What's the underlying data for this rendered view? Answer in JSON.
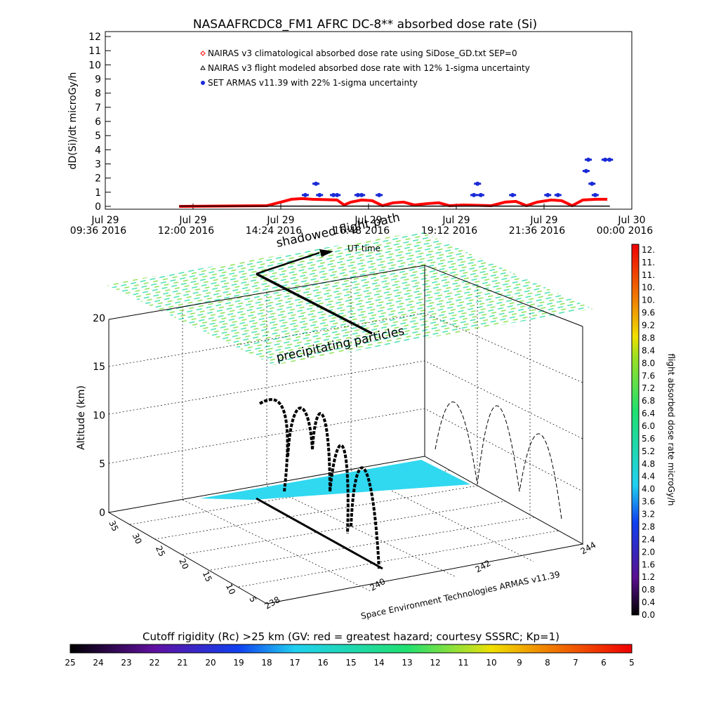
{
  "title": "NASAAFRCDC8_FM1 AFRC DC-8** absorbed dose rate (Si)",
  "chart_data": {
    "type": "line",
    "ylabel": "dD(Si)/dt microGy/h",
    "xlim": [
      9.6,
      24
    ],
    "xticks": [
      {
        "value": 9.6,
        "label": [
          "Jul 29",
          "09:36 2016"
        ]
      },
      {
        "value": 12,
        "label": [
          "Jul 29",
          "12:00 2016"
        ]
      },
      {
        "value": 14.4,
        "label": [
          "Jul 29",
          "14:24 2016"
        ]
      },
      {
        "value": 16.8,
        "label": [
          "Jul 29",
          "16:48 2016"
        ]
      },
      {
        "value": 19.2,
        "label": [
          "Jul 29",
          "19:12 2016"
        ]
      },
      {
        "value": 21.6,
        "label": [
          "Jul 29",
          "21:36 2016"
        ]
      },
      {
        "value": 24,
        "label": [
          "Jul 30",
          "00:00 2016"
        ]
      }
    ],
    "ylim": [
      -0.2,
      12.35
    ],
    "yticks": [
      0,
      1,
      2,
      3,
      4,
      5,
      6,
      7,
      8,
      9,
      10,
      11,
      12
    ],
    "series": [
      {
        "name": "NAIRAS v3 climatological absorbed dose rate using SiDose_GD.txt SEP=0",
        "color": "#ff0000",
        "marker": "diamond",
        "line": true,
        "x": [
          11.62,
          14.02,
          14.4,
          14.69,
          14.98,
          15.26,
          15.94,
          16.13,
          16.32,
          16.61,
          16.9,
          17.18,
          17.47,
          17.76,
          18.05,
          18.43,
          18.72,
          19.01,
          19.39,
          20.16,
          20.54,
          20.83,
          21.12,
          21.41,
          21.79,
          22.08,
          22.37,
          22.66,
          23.04,
          23.33
        ],
        "values": [
          0,
          0.05,
          0.3,
          0.5,
          0.55,
          0.5,
          0.45,
          0.1,
          0.3,
          0.45,
          0.4,
          0.05,
          0.25,
          0.3,
          0.1,
          0.2,
          0.25,
          0.05,
          0.1,
          0.05,
          0.3,
          0.35,
          0.05,
          0.3,
          0.45,
          0.4,
          0.05,
          0.45,
          0.5,
          0.5
        ]
      },
      {
        "name": "NAIRAS v3 flight modeled absorbed dose rate with 12% 1-sigma uncertainty",
        "color": "#000000",
        "marker": "triangle",
        "line": true,
        "x": [
          11.62,
          14.4,
          16.8,
          19.2,
          21.6,
          23.4
        ],
        "values": [
          0.02,
          0.02,
          0.02,
          0.02,
          0.02,
          0.02
        ]
      },
      {
        "name": "SET ARMAS v11.39 with 22% 1-sigma uncertainty",
        "color": "#1a2bd6",
        "marker": "circle",
        "line": false,
        "x": [
          15.07,
          15.36,
          15.46,
          15.84,
          15.94,
          16.51,
          16.61,
          17.09,
          19.68,
          19.78,
          19.87,
          20.74,
          21.7,
          21.98,
          22.75,
          22.81,
          22.91,
          23.0,
          23.27,
          23.39
        ],
        "values": [
          0.8,
          1.6,
          0.8,
          0.8,
          0.8,
          0.8,
          0.8,
          0.8,
          0.8,
          1.6,
          0.8,
          0.8,
          0.8,
          0.8,
          2.5,
          3.3,
          1.6,
          0.8,
          3.3,
          3.3
        ]
      }
    ]
  },
  "panel_3d": {
    "zlabel": "Altitude (km)",
    "zticks": [
      "0",
      "5",
      "10",
      "15",
      "20"
    ],
    "lat_ticks": [
      "5",
      "10",
      "15",
      "20",
      "25",
      "30",
      "35"
    ],
    "lon_ticks": [
      "238",
      "240",
      "242",
      "244"
    ],
    "annotations": [
      "shadowed flight path",
      "UT time",
      "precipitating particles"
    ],
    "credit": "Space Environment Technologies ARMAS v11.39"
  },
  "dose_colorbar": {
    "title": "flight absorbed dose rate microGy/h",
    "labels": [
      "0.0",
      "0.4",
      "0.8",
      "1.2",
      "1.6",
      "2.0",
      "2.4",
      "2.8",
      "3.2",
      "3.6",
      "4.0",
      "4.4",
      "4.8",
      "5.2",
      "5.6",
      "6.0",
      "6.4",
      "6.8",
      "7.2",
      "7.6",
      "8.0",
      "8.4",
      "8.8",
      "9.2",
      "9.6",
      "10.",
      "10.",
      "11.",
      "11.",
      "12."
    ]
  },
  "rigidity_colorbar": {
    "title": "Cutoff rigidity (Rc) >25 km (GV: red = greatest hazard; courtesy SSSRC; Kp=1)",
    "labels": [
      "25",
      "24",
      "23",
      "22",
      "21",
      "20",
      "19",
      "18",
      "17",
      "16",
      "15",
      "14",
      "13",
      "12",
      "11",
      "10",
      "9",
      "8",
      "7",
      "6",
      "5"
    ]
  }
}
